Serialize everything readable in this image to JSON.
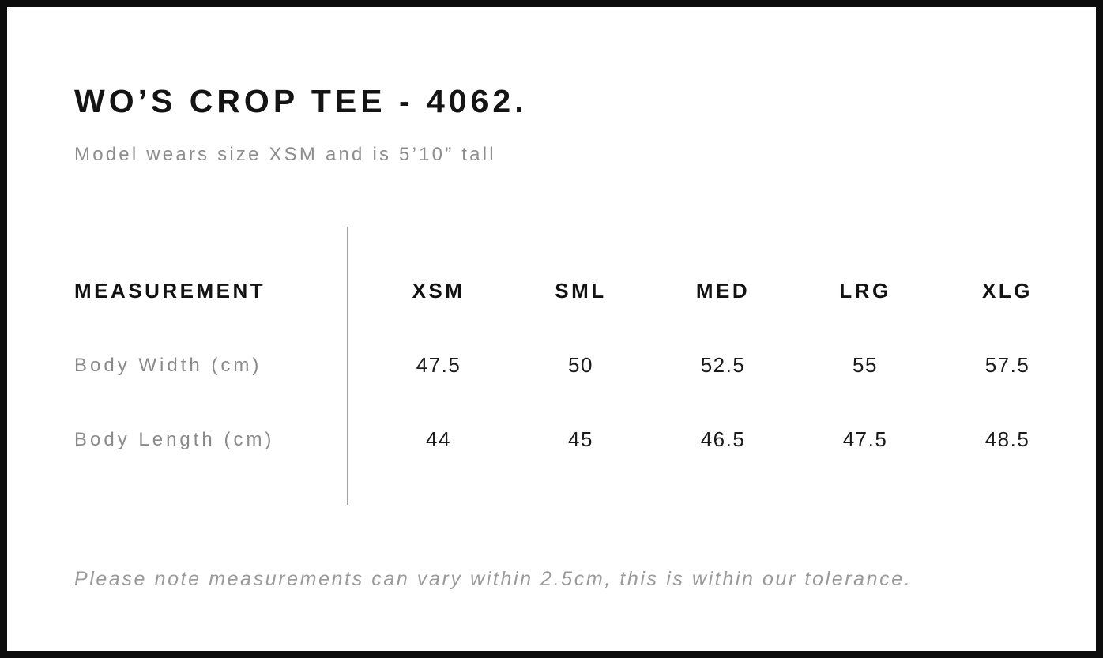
{
  "page": {
    "title": "WO’S CROP TEE - 4062.",
    "subtitle": "Model wears size XSM and is 5’10” tall",
    "footnote": "Please note measurements can vary within 2.5cm, this is within our tolerance."
  },
  "size_chart": {
    "columns": [
      "MEASUREMENT",
      "XSM",
      "SML",
      "MED",
      "LRG",
      "XLG"
    ],
    "rows": [
      {
        "label": "Body Width (cm)",
        "values": [
          "47.5",
          "50",
          "52.5",
          "55",
          "57.5"
        ]
      },
      {
        "label": "Body Length (cm)",
        "values": [
          "44",
          "45",
          "46.5",
          "47.5",
          "48.5"
        ]
      }
    ]
  },
  "colors": {
    "frame_border": "#0c0c0c",
    "text_primary": "#141414",
    "text_muted": "#8d8d8d",
    "note_gray": "#9a9a9a",
    "divider_gray": "#a2a2a2"
  }
}
